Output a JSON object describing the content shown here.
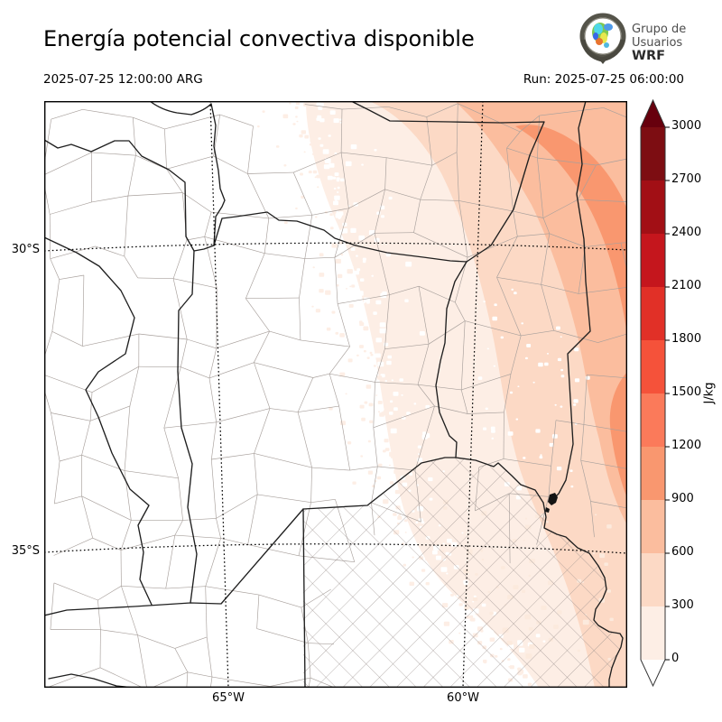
{
  "header": {
    "title": "Energía potencial convectiva disponible",
    "valid_time": "2025-07-25 12:00:00 ARG",
    "run": "Run: 2025-07-25 06:00:00"
  },
  "logo": {
    "line1": "Grupo de",
    "line2": "Usuarios",
    "line3": "WRF"
  },
  "axes": {
    "lat_labels": [
      "30°S",
      "35°S"
    ],
    "lon_labels": [
      "65°W",
      "60°W"
    ]
  },
  "colorbar": {
    "unit": "J/kg",
    "ticks": [
      "3000",
      "2700",
      "2400",
      "2100",
      "1800",
      "1500",
      "1200",
      "900",
      "600",
      "300",
      "0"
    ]
  },
  "cape_levels": [
    {
      "min": 0,
      "max": 300,
      "color": "#fdeee5"
    },
    {
      "min": 300,
      "max": 600,
      "color": "#fcd9c5"
    },
    {
      "min": 600,
      "max": 900,
      "color": "#fbbd9e"
    },
    {
      "min": 900,
      "max": 1200,
      "color": "#f9976f"
    },
    {
      "min": 1200,
      "max": 1500,
      "color": "#fb7a5a"
    },
    {
      "min": 1500,
      "max": 1800,
      "color": "#f5523a"
    },
    {
      "min": 1800,
      "max": 2100,
      "color": "#e13027"
    },
    {
      "min": 2100,
      "max": 2400,
      "color": "#c5161d"
    },
    {
      "min": 2400,
      "max": 2700,
      "color": "#a20f15"
    },
    {
      "min": 2700,
      "max": 3000,
      "color": "#7d0d12"
    }
  ],
  "colorbar_extend": {
    "over": "#67000d",
    "under": "#ffffff"
  },
  "map_style": {
    "province_line": "#1f1f1f",
    "department_line": "#a8a09c",
    "grid_line": "#000000",
    "background": "#ffffff"
  }
}
